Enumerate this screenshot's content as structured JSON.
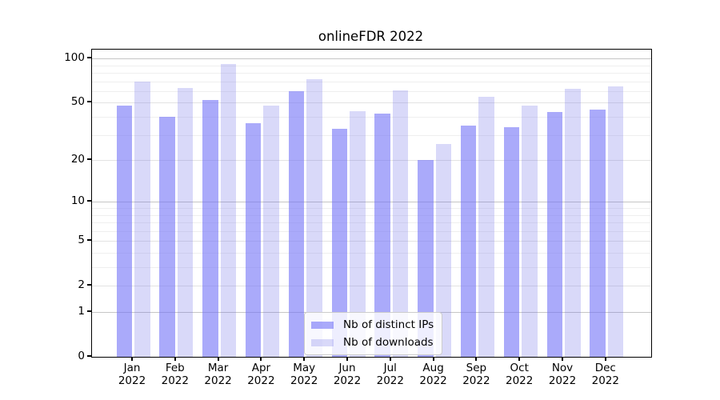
{
  "chart_data": {
    "type": "bar",
    "title": "onlineFDR 2022",
    "categories": [
      {
        "month": "Jan",
        "year": "2022"
      },
      {
        "month": "Feb",
        "year": "2022"
      },
      {
        "month": "Mar",
        "year": "2022"
      },
      {
        "month": "Apr",
        "year": "2022"
      },
      {
        "month": "May",
        "year": "2022"
      },
      {
        "month": "Jun",
        "year": "2022"
      },
      {
        "month": "Jul",
        "year": "2022"
      },
      {
        "month": "Aug",
        "year": "2022"
      },
      {
        "month": "Sep",
        "year": "2022"
      },
      {
        "month": "Oct",
        "year": "2022"
      },
      {
        "month": "Nov",
        "year": "2022"
      },
      {
        "month": "Dec",
        "year": "2022"
      }
    ],
    "series": [
      {
        "name": "Nb of distinct IPs",
        "color": "#aaaafa",
        "fill": "rgba(113,113,247,0.6)",
        "values": [
          48,
          40,
          52,
          36,
          60,
          33,
          42,
          20,
          35,
          34,
          43,
          45
        ]
      },
      {
        "name": "Nb of downloads",
        "color": "#d9d9f9",
        "fill": "rgba(103,103,231,0.25)",
        "values": [
          70,
          63,
          92,
          48,
          72,
          44,
          61,
          26,
          55,
          48,
          62,
          65
        ]
      }
    ],
    "xlabel": "",
    "ylabel": "",
    "yscale": "log1p",
    "ylim": [
      0,
      115
    ],
    "yticks": [
      0,
      1,
      2,
      5,
      10,
      20,
      50,
      100
    ],
    "decade_yticks": [
      1,
      10,
      100
    ],
    "minor_yticks": [
      3,
      4,
      6,
      7,
      8,
      9,
      30,
      40,
      60,
      70,
      80,
      90
    ],
    "grid": true,
    "legend_position": "lower center"
  },
  "colors": {
    "spine": "#000000",
    "grid_decade": "#c6c6c6",
    "grid_major": "#e3e3e3",
    "grid_minor": "#efefef",
    "legend_border": "#cccccc",
    "text": "#000000"
  }
}
